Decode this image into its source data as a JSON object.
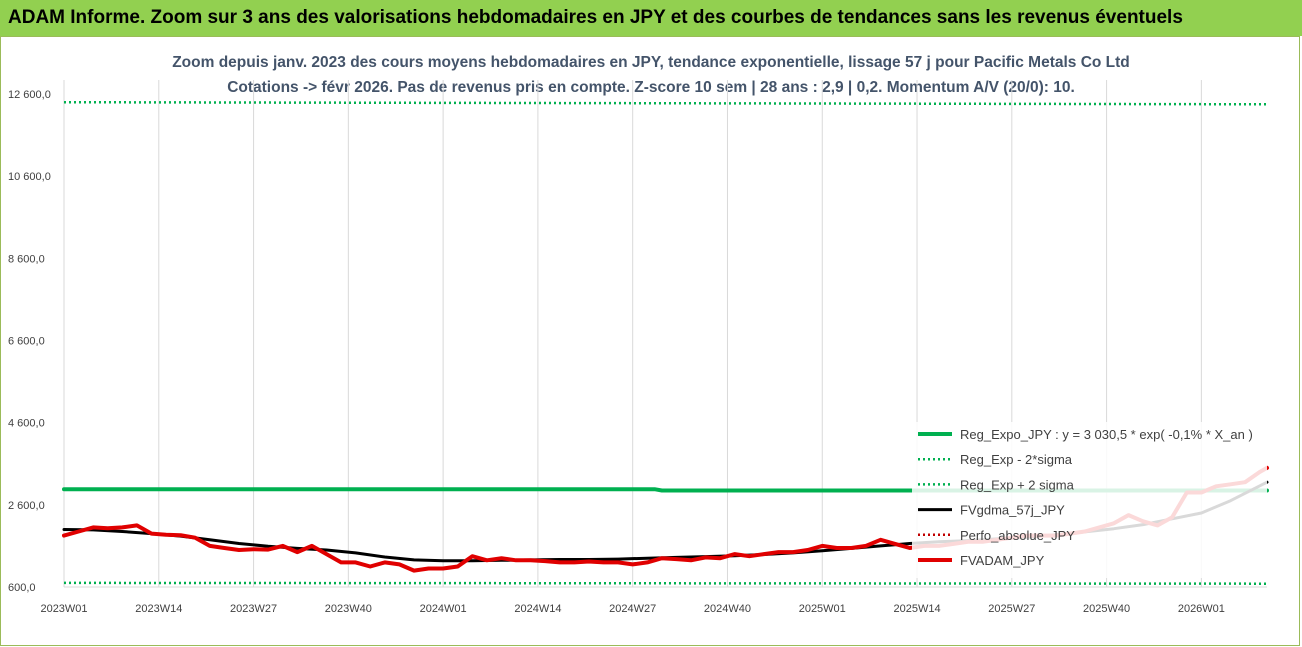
{
  "banner": "ADAM Informe. Zoom sur 3 ans des valorisations hebdomadaires en JPY et des courbes de tendances sans les revenus éventuels",
  "chart_data": {
    "type": "line",
    "title": "Zoom depuis janv. 2023 des cours moyens hebdomadaires en JPY, tendance exponentielle, lissage 57 j pour Pacific Metals Co Ltd",
    "subtitle": "Cotations -> févr 2026. Pas de revenus pris en compte. Z-score 10 sem | 28 ans : 2,9 | 0,2. Momentum A/V (20/0): 10.",
    "xlabel": "",
    "ylabel": "",
    "ylim": [
      600,
      12600
    ],
    "y_ticks": [
      "12 600,0",
      "10 600,0",
      "8 600,0",
      "6 600,0",
      "4 600,0",
      "2 600,0",
      "600,0"
    ],
    "x_ticks": [
      "2023W01",
      "2023W14",
      "2023W27",
      "2023W40",
      "2024W01",
      "2024W14",
      "2024W27",
      "2024W40",
      "2025W01",
      "2025W14",
      "2025W27",
      "2025W40",
      "2026W01"
    ],
    "x_range_weeks": [
      0,
      165
    ],
    "grid": "vertical",
    "legend_position": "bottom-right",
    "series": [
      {
        "name": "Reg_Expo_JPY : y = 3 030,5 * exp( -0,1% *  X_an )",
        "color": "#00b050",
        "style": "solid-thick",
        "x": [
          0,
          81,
          82,
          165
        ],
        "y": [
          2980,
          2980,
          2950,
          2950
        ]
      },
      {
        "name": "Reg_Exp - 2*sigma",
        "color": "#00b050",
        "style": "dotted",
        "x": [
          0,
          165
        ],
        "y": [
          700,
          680
        ]
      },
      {
        "name": "Reg_Exp + 2 sigma",
        "color": "#00b050",
        "style": "dotted",
        "x": [
          0,
          165
        ],
        "y": [
          12400,
          12350
        ]
      },
      {
        "name": "FVgdma_57j_JPY",
        "color": "#000000",
        "style": "solid",
        "x": [
          0,
          4,
          8,
          12,
          16,
          20,
          24,
          28,
          32,
          36,
          40,
          44,
          48,
          52,
          56,
          60,
          64,
          68,
          72,
          76,
          80,
          84,
          88,
          92,
          96,
          100,
          104,
          108,
          112,
          116,
          120,
          124,
          128,
          132,
          136,
          140,
          144,
          148,
          152,
          156,
          160,
          165
        ],
        "y": [
          2000,
          1990,
          1950,
          1900,
          1840,
          1750,
          1660,
          1590,
          1540,
          1500,
          1430,
          1330,
          1260,
          1240,
          1240,
          1250,
          1260,
          1270,
          1270,
          1280,
          1300,
          1320,
          1340,
          1360,
          1390,
          1430,
          1480,
          1540,
          1600,
          1660,
          1700,
          1730,
          1770,
          1810,
          1870,
          1940,
          2020,
          2120,
          2260,
          2400,
          2700,
          3150
        ]
      },
      {
        "name": "Perfo_absolue_JPY",
        "color": "#c00000",
        "style": "dotted",
        "x": [],
        "y": []
      },
      {
        "name": "FVADAM_JPY",
        "color": "#e00000",
        "style": "solid-thick",
        "x": [
          0,
          2,
          4,
          6,
          8,
          10,
          12,
          14,
          16,
          18,
          20,
          22,
          24,
          26,
          28,
          30,
          32,
          34,
          36,
          38,
          40,
          42,
          44,
          46,
          48,
          50,
          52,
          54,
          56,
          58,
          60,
          62,
          64,
          66,
          68,
          70,
          72,
          74,
          76,
          78,
          80,
          82,
          84,
          86,
          88,
          90,
          92,
          94,
          96,
          98,
          100,
          102,
          104,
          106,
          108,
          110,
          112,
          114,
          116,
          118,
          120,
          122,
          124,
          126,
          128,
          130,
          132,
          134,
          136,
          138,
          140,
          142,
          144,
          146,
          148,
          150,
          152,
          154,
          156,
          158,
          160,
          162,
          164,
          165
        ],
        "y": [
          1850,
          1950,
          2050,
          2030,
          2050,
          2100,
          1900,
          1870,
          1860,
          1800,
          1600,
          1550,
          1500,
          1520,
          1510,
          1600,
          1450,
          1600,
          1400,
          1200,
          1200,
          1100,
          1200,
          1150,
          1000,
          1050,
          1050,
          1100,
          1350,
          1250,
          1300,
          1250,
          1250,
          1230,
          1200,
          1200,
          1220,
          1200,
          1200,
          1150,
          1200,
          1300,
          1280,
          1250,
          1320,
          1300,
          1400,
          1350,
          1400,
          1450,
          1450,
          1500,
          1600,
          1550,
          1550,
          1600,
          1750,
          1650,
          1550,
          1600,
          1600,
          1650,
          1700,
          1700,
          1750,
          1800,
          1850,
          1850,
          1850,
          1900,
          1950,
          2050,
          2150,
          2350,
          2200,
          2100,
          2300,
          2900,
          2900,
          3050,
          3100,
          3150,
          3400,
          3500
        ]
      }
    ]
  }
}
